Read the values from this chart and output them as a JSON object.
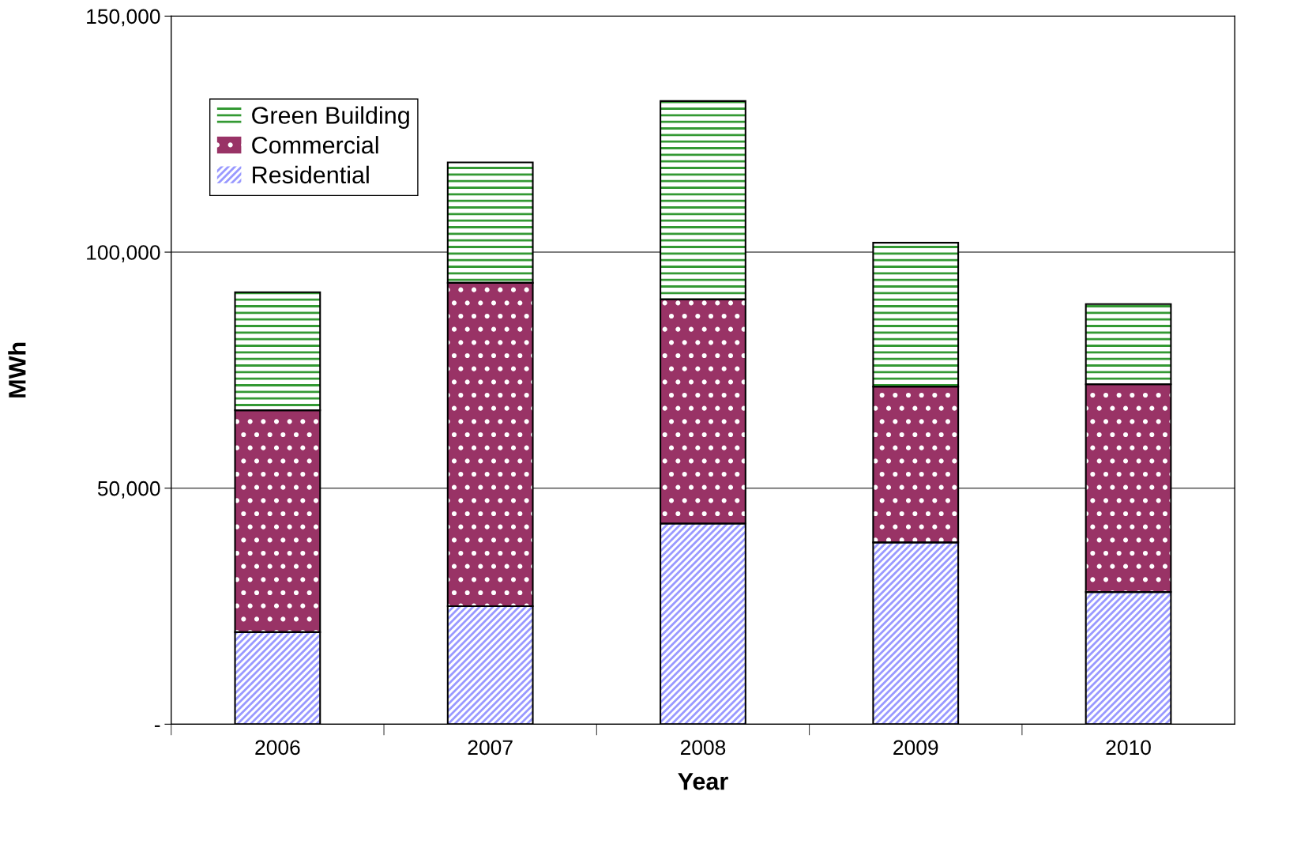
{
  "chart_data": {
    "type": "bar",
    "stacked": true,
    "xlabel": "Year",
    "ylabel": "MWh",
    "categories": [
      "2006",
      "2007",
      "2008",
      "2009",
      "2010"
    ],
    "series": [
      {
        "name": "Residential",
        "color": "#9999ff",
        "values": [
          19500,
          25000,
          42500,
          38500,
          28000
        ]
      },
      {
        "name": "Commercial",
        "color": "#993366",
        "values": [
          47000,
          68500,
          47500,
          33000,
          44000
        ]
      },
      {
        "name": "Green Building",
        "color": "#339933",
        "values": [
          25000,
          25500,
          42000,
          30500,
          17000
        ]
      }
    ],
    "ylim": [
      0,
      150000
    ],
    "yticks": [
      {
        "value": 0,
        "label": "-"
      },
      {
        "value": 50000,
        "label": "50,000"
      },
      {
        "value": 100000,
        "label": "100,000"
      },
      {
        "value": 150000,
        "label": "150,000"
      }
    ],
    "grid": "y",
    "legend": "top left"
  }
}
